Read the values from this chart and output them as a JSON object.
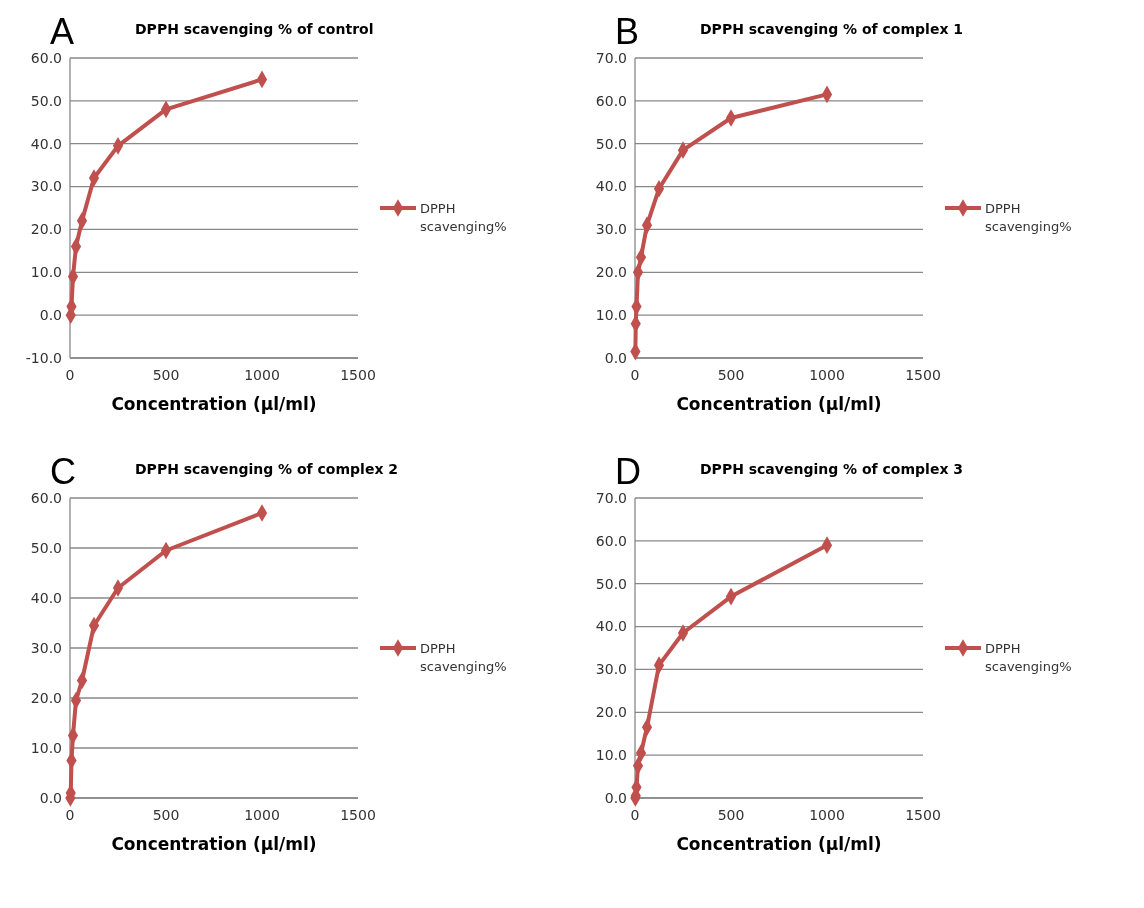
{
  "chart_data": [
    {
      "type": "line",
      "title": "DPPH scavenging % of control",
      "xlabel": "Concentration (µl/ml)",
      "annotations": [
        "A"
      ],
      "x": [
        3.9,
        7.8,
        15.6,
        31.25,
        62.5,
        125,
        250,
        500,
        1000
      ],
      "series": [
        {
          "name": "DPPH scavenging%",
          "color": "#c0504d",
          "values": [
            0,
            2,
            9,
            16,
            22,
            32,
            39.5,
            48,
            55
          ]
        }
      ],
      "xlim": [
        0,
        1500
      ],
      "xticks": [
        0,
        500,
        1000,
        1500
      ],
      "ylim": [
        -10,
        60
      ],
      "yticks": [
        {
          "value": -10,
          "label": "-10.0"
        },
        {
          "value": 0,
          "label": "0.0"
        },
        {
          "value": 10,
          "label": "10.0"
        },
        {
          "value": 20,
          "label": "20.0"
        },
        {
          "value": 30,
          "label": "30.0"
        },
        {
          "value": 40,
          "label": "40.0"
        },
        {
          "value": 50,
          "label": "50.0"
        },
        {
          "value": 60,
          "label": "60.0"
        }
      ],
      "grid": "y",
      "legend": "right",
      "marker": "diamond",
      "line_style": "solid"
    },
    {
      "type": "line",
      "title": "DPPH scavenging % of complex 1",
      "xlabel": "Concentration (µl/ml)",
      "annotations": [
        "B"
      ],
      "x": [
        1.95,
        3.9,
        7.8,
        15.6,
        31.25,
        62.5,
        125,
        250,
        500,
        1000
      ],
      "series": [
        {
          "name": "DPPH scavenging%",
          "color": "#c0504d",
          "values": [
            1.5,
            8,
            12,
            20,
            23.5,
            31,
            39.5,
            48.5,
            56,
            61.5
          ]
        }
      ],
      "xlim": [
        0,
        1500
      ],
      "xticks": [
        0,
        500,
        1000,
        1500
      ],
      "ylim": [
        0,
        70
      ],
      "yticks": [
        {
          "value": 0,
          "label": "0.0"
        },
        {
          "value": 10,
          "label": "10.0"
        },
        {
          "value": 20,
          "label": "20.0"
        },
        {
          "value": 30,
          "label": "30.0"
        },
        {
          "value": 40,
          "label": "40.0"
        },
        {
          "value": 50,
          "label": "50.0"
        },
        {
          "value": 60,
          "label": "60.0"
        },
        {
          "value": 70,
          "label": "70.0"
        }
      ],
      "grid": "y",
      "legend": "right",
      "marker": "diamond",
      "line_style": "solid"
    },
    {
      "type": "line",
      "title": "DPPH scavenging % of complex 2",
      "xlabel": "Concentration (µl/ml)",
      "annotations": [
        "C"
      ],
      "x": [
        1.95,
        3.9,
        7.8,
        15.6,
        31.25,
        62.5,
        125,
        250,
        500,
        1000
      ],
      "series": [
        {
          "name": "DPPH scavenging%",
          "color": "#c0504d",
          "values": [
            0,
            1,
            7.5,
            12.5,
            19.5,
            23.5,
            34.5,
            42,
            49.5,
            57
          ]
        }
      ],
      "xlim": [
        0,
        1500
      ],
      "xticks": [
        0,
        500,
        1000,
        1500
      ],
      "ylim": [
        0,
        60
      ],
      "yticks": [
        {
          "value": 0,
          "label": "0.0"
        },
        {
          "value": 10,
          "label": "10.0"
        },
        {
          "value": 20,
          "label": "20.0"
        },
        {
          "value": 30,
          "label": "30.0"
        },
        {
          "value": 40,
          "label": "40.0"
        },
        {
          "value": 50,
          "label": "50.0"
        },
        {
          "value": 60,
          "label": "60.0"
        }
      ],
      "grid": "y",
      "legend": "right",
      "marker": "diamond",
      "line_style": "solid"
    },
    {
      "type": "line",
      "title": "DPPH scavenging % of complex 3",
      "xlabel": "Concentration (µl/ml)",
      "annotations": [
        "D"
      ],
      "x": [
        1.95,
        3.9,
        7.8,
        15.6,
        31.25,
        62.5,
        125,
        250,
        500,
        1000
      ],
      "series": [
        {
          "name": "DPPH scavenging%",
          "color": "#c0504d",
          "values": [
            0,
            0.5,
            2.5,
            7.5,
            10.5,
            16.5,
            31,
            38.5,
            47,
            59
          ]
        }
      ],
      "xlim": [
        0,
        1500
      ],
      "xticks": [
        0,
        500,
        1000,
        1500
      ],
      "ylim": [
        0,
        70
      ],
      "yticks": [
        {
          "value": 0,
          "label": "0.0"
        },
        {
          "value": 10,
          "label": "10.0"
        },
        {
          "value": 20,
          "label": "20.0"
        },
        {
          "value": 30,
          "label": "30.0"
        },
        {
          "value": 40,
          "label": "40.0"
        },
        {
          "value": 50,
          "label": "50.0"
        },
        {
          "value": 60,
          "label": "60.0"
        },
        {
          "value": 70,
          "label": "70.0"
        }
      ],
      "grid": "y",
      "legend": "right",
      "marker": "diamond",
      "line_style": "solid"
    }
  ]
}
